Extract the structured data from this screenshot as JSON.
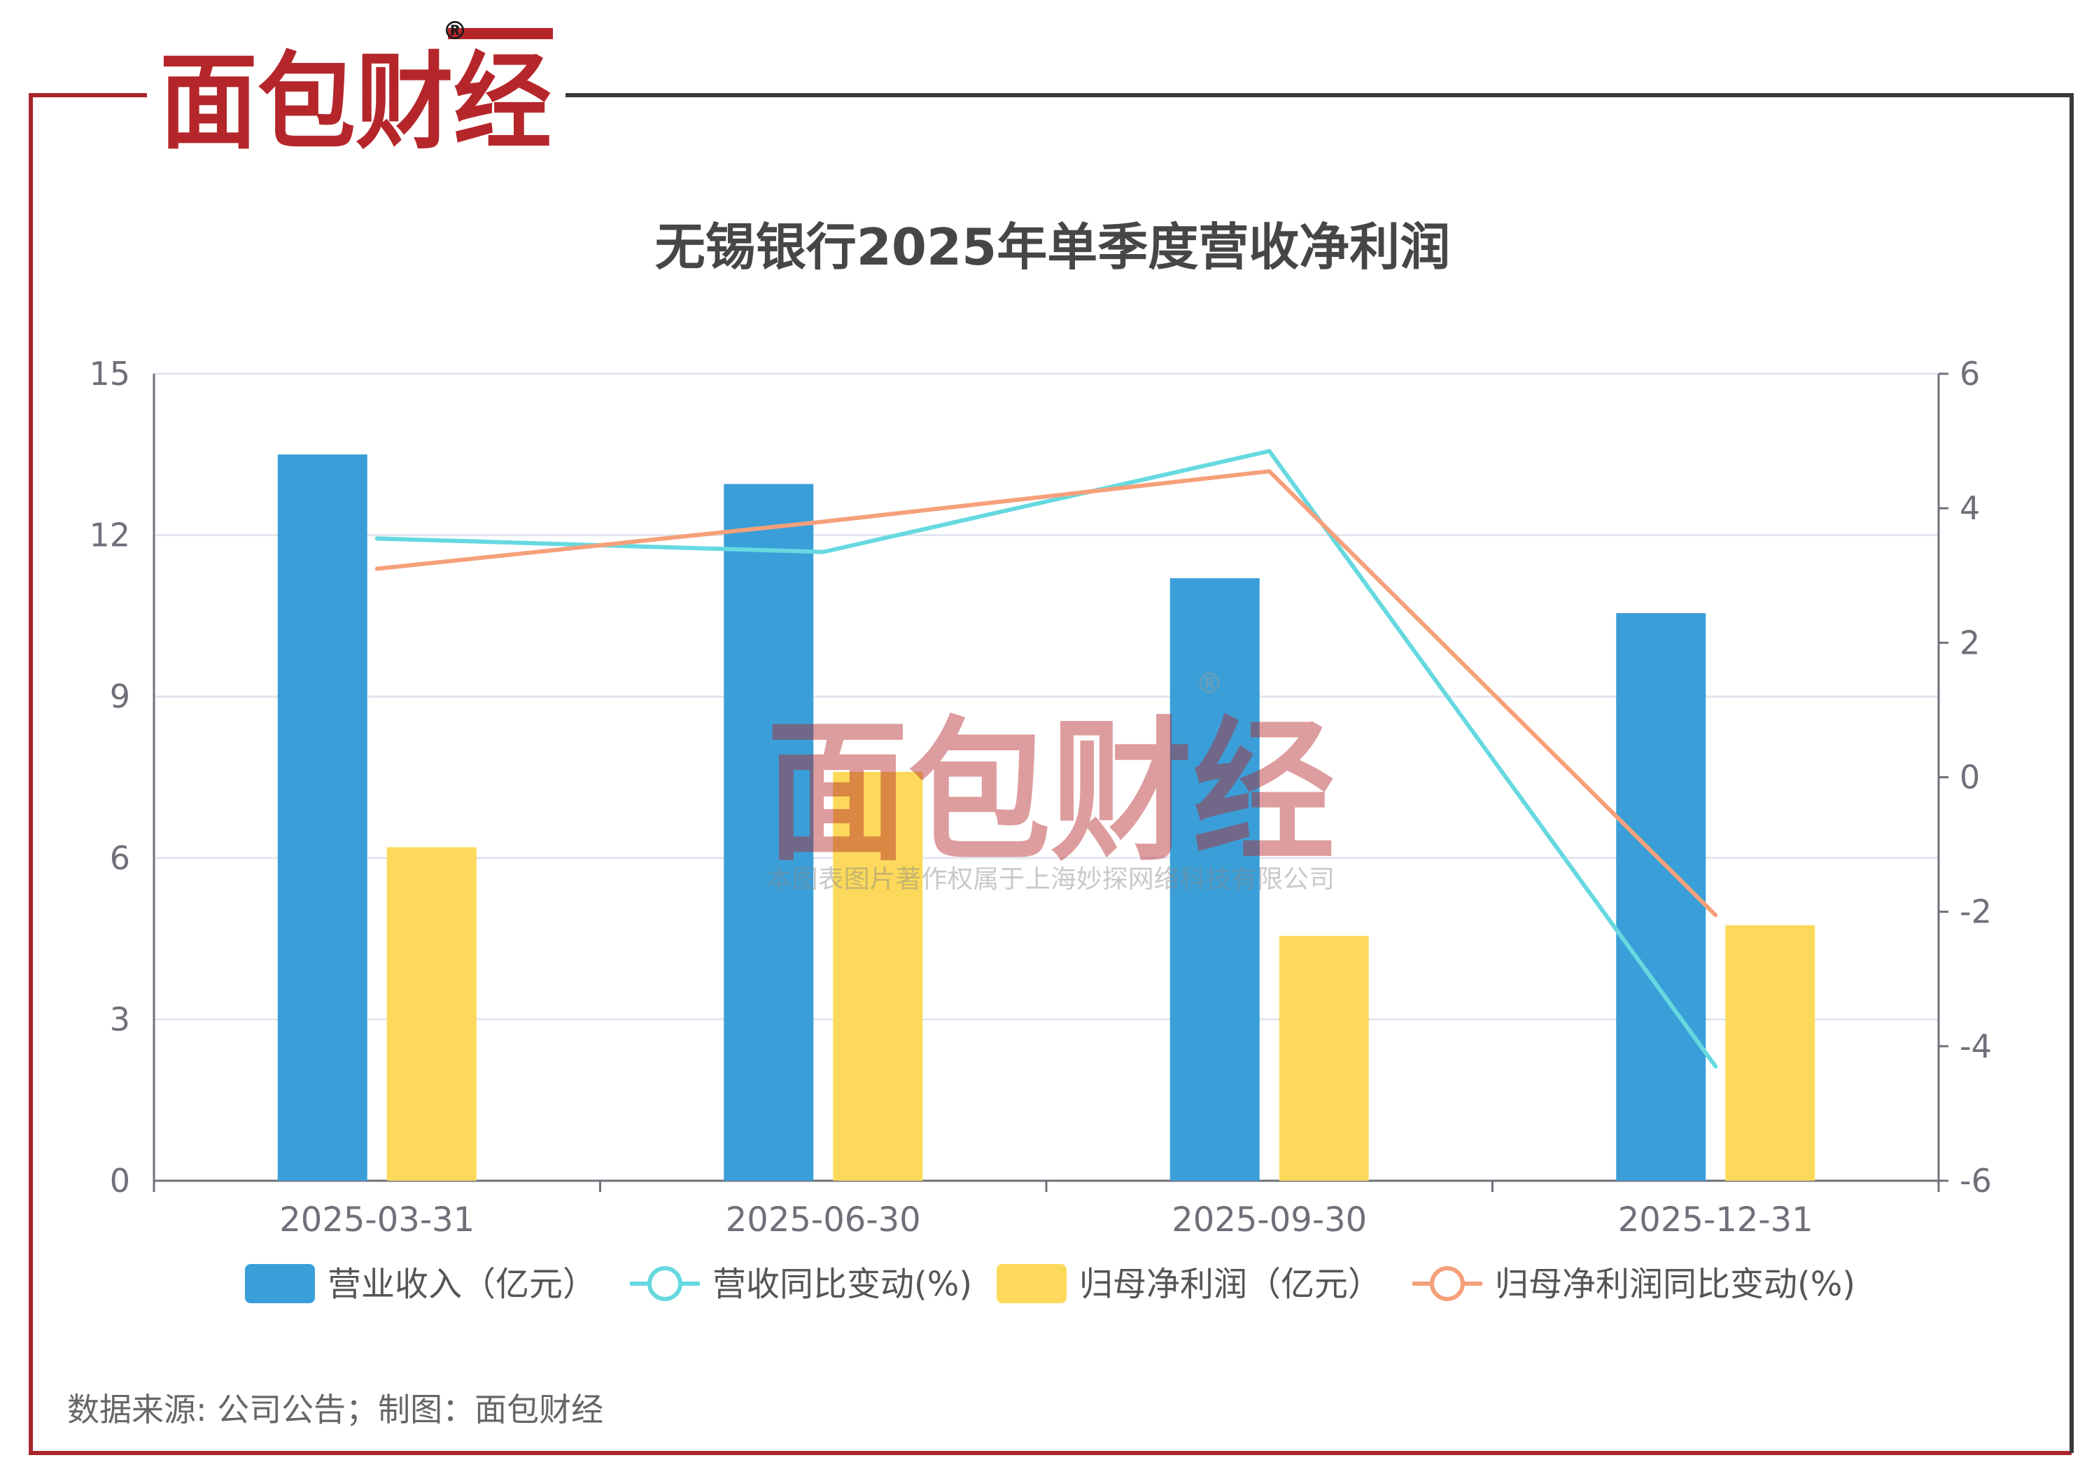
{
  "brand": {
    "logo_text": "面包财经",
    "registered_mark": "®",
    "watermark_text": "面包财经",
    "watermark_caption": "本图表图片著作权属于上海妙探网络科技有限公司"
  },
  "colors": {
    "frame_left_red": "#a8262a",
    "frame_dark": "#3a3a3a",
    "logo_red": "#b5262b",
    "logo_dark": "#1a1a1a",
    "revenue_bar": "#3a9fd8",
    "profit_bar": "#fcd95a",
    "revenue_yoy_line": "#66d9e0",
    "profit_yoy_line": "#f5a07a",
    "grid": "#e3e6f0",
    "axis": "#6e7079",
    "tick_text": "#6e7079",
    "title_text": "#464646"
  },
  "chart_data": {
    "type": "bar",
    "title": "无锡银行2025年单季度营收净利润",
    "categories": [
      "2025-03-31",
      "2025-06-30",
      "2025-09-30",
      "2025-12-31"
    ],
    "y_left": {
      "min": 0,
      "max": 15,
      "ticks": [
        0,
        3,
        6,
        9,
        12,
        15
      ]
    },
    "y_right": {
      "min": -6,
      "max": 6,
      "ticks": [
        -6,
        -4,
        -2,
        0,
        2,
        4,
        6
      ]
    },
    "grid": true,
    "legend_position": "bottom",
    "series": [
      {
        "name": "营业收入（亿元）",
        "kind": "bar",
        "axis": "left",
        "values": [
          13.5,
          12.95,
          11.2,
          10.55
        ]
      },
      {
        "name": "营收同比变动(%)",
        "kind": "line",
        "axis": "right",
        "values": [
          3.55,
          3.35,
          4.85,
          -4.3
        ]
      },
      {
        "name": "归母净利润（亿元）",
        "kind": "bar",
        "axis": "left",
        "values": [
          6.2,
          7.6,
          4.55,
          4.75
        ]
      },
      {
        "name": "归母净利润同比变动(%)",
        "kind": "line",
        "axis": "right",
        "values": [
          3.1,
          3.8,
          4.55,
          -2.05
        ]
      }
    ]
  },
  "footer": {
    "source_text": "数据来源: 公司公告；制图：面包财经"
  }
}
